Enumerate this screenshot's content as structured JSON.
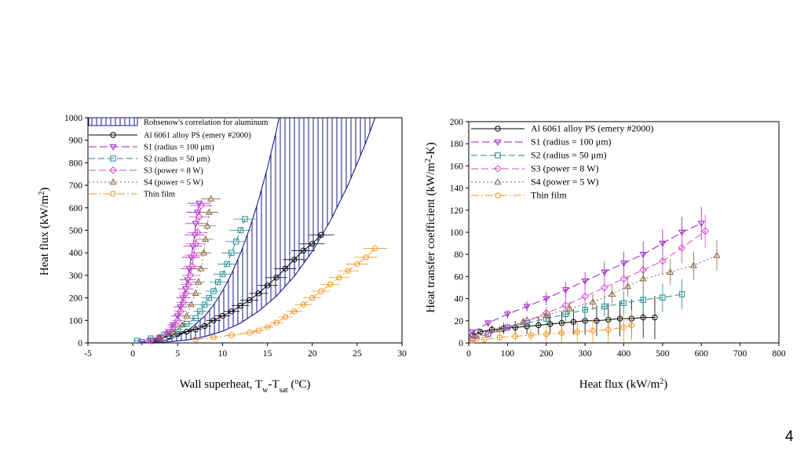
{
  "page_number": "4",
  "chart_data": [
    {
      "type": "scatter",
      "title": "",
      "xlabel": {
        "main": "Wall superheat, T",
        "sub1": "w",
        "dash": "-T",
        "sub2": "sat",
        "paren": " (",
        "sup": "o",
        "unit": "C)"
      },
      "ylabel": {
        "main": "Heat flux (kW/m",
        "sup": "2",
        "close": ")"
      },
      "xlim": [
        -5,
        30
      ],
      "ylim": [
        0,
        1000
      ],
      "xticks": [
        "-5",
        "0",
        "5",
        "10",
        "15",
        "20",
        "25",
        "30"
      ],
      "yticks": [
        "0",
        "100",
        "200",
        "300",
        "400",
        "500",
        "600",
        "700",
        "800",
        "900",
        "1000"
      ],
      "band_label": "Rohsenow's correlation for aluminum",
      "band": {
        "lower": [
          [
            0,
            0
          ],
          [
            2,
            1
          ],
          [
            4,
            5
          ],
          [
            6,
            13
          ],
          [
            8,
            28
          ],
          [
            10,
            52
          ],
          [
            12,
            88
          ],
          [
            14,
            140
          ],
          [
            16,
            208
          ],
          [
            18,
            296
          ],
          [
            20,
            406
          ],
          [
            22,
            541
          ],
          [
            24,
            702
          ],
          [
            26,
            892
          ],
          [
            27,
            1000
          ]
        ],
        "upper": [
          [
            0,
            0
          ],
          [
            2,
            2
          ],
          [
            4,
            15
          ],
          [
            6,
            50
          ],
          [
            8,
            118
          ],
          [
            9,
            168
          ],
          [
            10,
            230
          ],
          [
            11,
            306
          ],
          [
            12,
            398
          ],
          [
            13,
            506
          ],
          [
            14,
            632
          ],
          [
            15,
            777
          ],
          [
            16,
            943
          ],
          [
            16.3,
            1000
          ]
        ]
      },
      "series": [
        {
          "name": "Al 6061 alloy PS (emery #2000)",
          "color": "#000000",
          "marker": "circle",
          "dash": "",
          "x": [
            2.2,
            3,
            4,
            5,
            6,
            7,
            8,
            9,
            10,
            11,
            12,
            13,
            14,
            15,
            16,
            17,
            18,
            19,
            20,
            21
          ],
          "y": [
            10,
            20,
            30,
            40,
            50,
            60,
            75,
            100,
            120,
            140,
            165,
            190,
            220,
            255,
            290,
            330,
            370,
            410,
            440,
            480
          ]
        },
        {
          "name": "S1 (radius = 100 μm)",
          "color": "#9b1fc4",
          "marker": "triangle-down",
          "dash": "10 4",
          "x": [
            1,
            2,
            3,
            4,
            4.5,
            5,
            5.3,
            5.6,
            5.9,
            6.1,
            6.3,
            6.5,
            6.7,
            6.9,
            7,
            7.2,
            7.4
          ],
          "y": [
            5,
            12,
            25,
            50,
            80,
            120,
            160,
            200,
            240,
            280,
            330,
            380,
            430,
            480,
            530,
            580,
            620
          ]
        },
        {
          "name": "S2 (radius = 50 μm)",
          "color": "#1c8c8c",
          "marker": "square",
          "dash": "8 4",
          "x": [
            0.5,
            2,
            3.5,
            5,
            6,
            7,
            7.5,
            8,
            8.5,
            9,
            9.5,
            10,
            10.5,
            11,
            11.5,
            12,
            12.5
          ],
          "y": [
            10,
            20,
            35,
            60,
            85,
            110,
            140,
            170,
            200,
            230,
            270,
            305,
            350,
            400,
            450,
            500,
            550
          ]
        },
        {
          "name": "S3 (power = 8 W)",
          "color": "#d44dcc",
          "marker": "diamond",
          "dash": "9 4",
          "x": [
            2,
            3,
            4,
            4.5,
            5,
            5.3,
            5.6,
            5.9,
            6.2,
            6.4,
            6.6,
            6.8,
            7,
            7.2,
            7.4,
            7.6
          ],
          "y": [
            10,
            25,
            45,
            70,
            100,
            140,
            180,
            220,
            260,
            300,
            340,
            390,
            440,
            490,
            560,
            610
          ]
        },
        {
          "name": "S4 (power = 5 W)",
          "color": "#8b6142",
          "marker": "triangle-up",
          "dash": "2 3",
          "x": [
            3,
            4.5,
            5.5,
            6,
            6.5,
            7,
            7.3,
            7.6,
            7.9,
            8.1,
            8.3,
            8.5,
            8.7
          ],
          "y": [
            20,
            45,
            80,
            120,
            170,
            220,
            270,
            330,
            400,
            460,
            520,
            580,
            640
          ]
        },
        {
          "name": "Thin film",
          "color": "#f0951e",
          "marker": "circle",
          "dash": "10 3 2 3",
          "x": [
            7,
            9,
            11,
            13,
            14,
            15,
            16,
            17,
            18,
            19,
            20,
            21,
            22,
            23,
            24,
            25,
            26,
            27
          ],
          "y": [
            15,
            25,
            35,
            45,
            55,
            70,
            90,
            115,
            140,
            170,
            200,
            230,
            260,
            290,
            320,
            350,
            380,
            420
          ]
        }
      ]
    },
    {
      "type": "scatter",
      "title": "",
      "xlabel": {
        "main": "Heat flux (kW/m",
        "sup": "2",
        "close": ")"
      },
      "ylabel": {
        "main": "Heat transfer coefficient (kW/m",
        "sup": "2",
        "close": "-K)"
      },
      "xlim": [
        0,
        800
      ],
      "ylim": [
        0,
        200
      ],
      "xticks": [
        "0",
        "100",
        "200",
        "300",
        "400",
        "500",
        "600",
        "700",
        "800"
      ],
      "yticks": [
        "0",
        "20",
        "40",
        "60",
        "80",
        "100",
        "120",
        "140",
        "160",
        "180",
        "200"
      ],
      "series": [
        {
          "name": "Al 6061 alloy PS (emery #2000)",
          "color": "#000000",
          "marker": "circle",
          "dash": "",
          "x": [
            10,
            30,
            60,
            90,
            120,
            150,
            180,
            210,
            240,
            270,
            300,
            330,
            360,
            390,
            420,
            450,
            480
          ],
          "y": [
            7,
            10,
            12,
            13,
            14,
            15,
            16,
            17,
            18,
            19,
            20,
            20,
            21,
            22,
            22,
            23,
            23
          ]
        },
        {
          "name": "S1 (radius = 100 μm)",
          "color": "#9b1fc4",
          "marker": "triangle-down",
          "dash": "10 4",
          "x": [
            10,
            50,
            100,
            150,
            200,
            250,
            300,
            350,
            400,
            450,
            500,
            550,
            600
          ],
          "y": [
            10,
            18,
            26,
            33,
            40,
            48,
            56,
            64,
            72,
            80,
            90,
            100,
            108
          ]
        },
        {
          "name": "S2 (radius = 50 μm)",
          "color": "#1c8c8c",
          "marker": "square",
          "dash": "8 4",
          "x": [
            10,
            50,
            100,
            150,
            200,
            250,
            300,
            350,
            400,
            450,
            500,
            550
          ],
          "y": [
            4,
            8,
            14,
            18,
            22,
            26,
            30,
            33,
            36,
            39,
            41,
            44
          ]
        },
        {
          "name": "S3 (power = 8 W)",
          "color": "#d44dcc",
          "marker": "diamond",
          "dash": "9 4",
          "x": [
            10,
            50,
            100,
            150,
            200,
            250,
            300,
            350,
            400,
            450,
            500,
            550,
            610
          ],
          "y": [
            4,
            8,
            14,
            20,
            27,
            34,
            42,
            50,
            58,
            66,
            74,
            86,
            101
          ]
        },
        {
          "name": "S4 (power = 5 W)",
          "color": "#8b6142",
          "marker": "triangle-up",
          "dash": "2 3",
          "x": [
            20,
            80,
            140,
            200,
            260,
            320,
            370,
            410,
            450,
            520,
            580,
            640
          ],
          "y": [
            6,
            12,
            19,
            25,
            31,
            37,
            44,
            51,
            58,
            64,
            70,
            79
          ]
        },
        {
          "name": "Thin film",
          "color": "#f0951e",
          "marker": "circle",
          "dash": "10 3 2 3",
          "x": [
            10,
            40,
            80,
            120,
            160,
            200,
            240,
            280,
            320,
            360,
            400,
            420
          ],
          "y": [
            2,
            3,
            5,
            6,
            7,
            8,
            9,
            10,
            11,
            12,
            14,
            16
          ]
        }
      ]
    }
  ]
}
